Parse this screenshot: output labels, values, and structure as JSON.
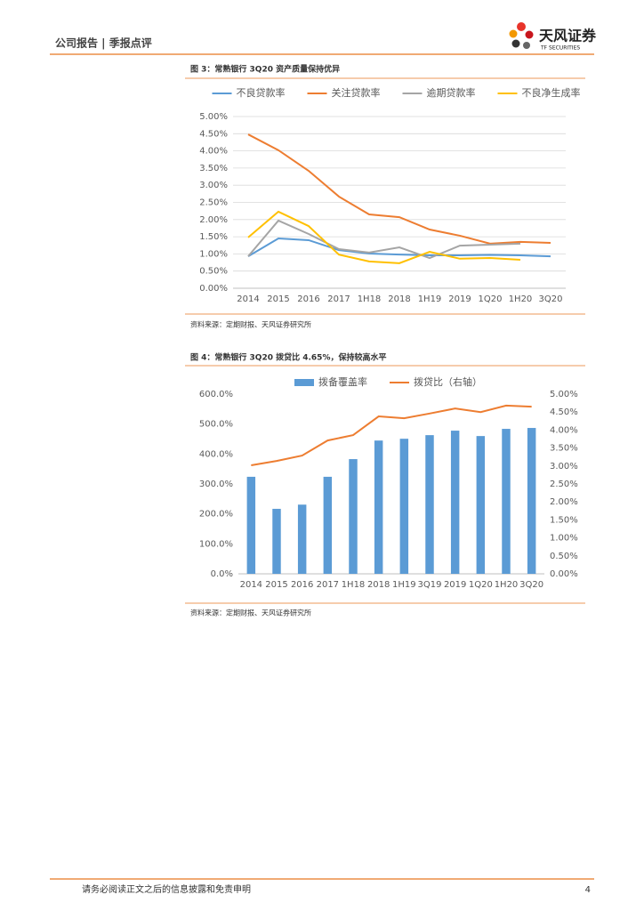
{
  "header": {
    "title": "公司报告 | 季报点评",
    "brand": "天风证券",
    "brand_en": "TF SECURITIES"
  },
  "figures": [
    {
      "caption": "图 3：常熟银行 3Q20 资产质量保持优异",
      "source": "资料来源：定期财报、天风证券研究所"
    },
    {
      "caption": "图 4：常熟银行 3Q20 拨贷比 4.65%，保持较高水平",
      "source": "资料来源：定期财报、天风证券研究所"
    }
  ],
  "chart_data": [
    {
      "type": "line",
      "categories": [
        "2014",
        "2015",
        "2016",
        "2017",
        "1H18",
        "2018",
        "1H19",
        "2019",
        "1Q20",
        "1H20",
        "3Q20"
      ],
      "ylim": [
        0,
        5
      ],
      "yticks": [
        {
          "value": 0,
          "label": "0.00%"
        },
        {
          "value": 0.5,
          "label": "0.50%"
        },
        {
          "value": 1,
          "label": "1.00%"
        },
        {
          "value": 1.5,
          "label": "1.50%"
        },
        {
          "value": 2,
          "label": "2.00%"
        },
        {
          "value": 2.5,
          "label": "2.50%"
        },
        {
          "value": 3,
          "label": "3.00%"
        },
        {
          "value": 3.5,
          "label": "3.50%"
        },
        {
          "value": 4,
          "label": "4.00%"
        },
        {
          "value": 4.5,
          "label": "4.50%"
        },
        {
          "value": 5,
          "label": "5.00%"
        }
      ],
      "grid": true,
      "series": [
        {
          "name": "不良贷款率",
          "color": "#5b9bd5",
          "values": [
            0.93,
            1.45,
            1.4,
            1.11,
            1.01,
            0.98,
            0.96,
            0.96,
            0.97,
            0.96,
            0.93
          ]
        },
        {
          "name": "关注贷款率",
          "color": "#ed7d31",
          "values": [
            4.48,
            4.02,
            3.42,
            2.67,
            2.15,
            2.07,
            1.71,
            1.53,
            1.3,
            1.35,
            1.32
          ]
        },
        {
          "name": "逾期贷款率",
          "color": "#a5a5a5",
          "values": [
            0.93,
            1.97,
            1.58,
            1.14,
            1.04,
            1.19,
            0.88,
            1.24,
            1.27,
            1.3,
            null
          ]
        },
        {
          "name": "不良净生成率",
          "color": "#ffc000",
          "values": [
            1.48,
            2.23,
            1.81,
            0.98,
            0.78,
            0.73,
            1.06,
            0.86,
            0.88,
            0.83,
            null
          ]
        }
      ]
    },
    {
      "type": "combo",
      "categories": [
        "2014",
        "2015",
        "2016",
        "2017",
        "1H18",
        "2018",
        "1H19",
        "3Q19",
        "2019",
        "1Q20",
        "1H20",
        "3Q20"
      ],
      "ylim": [
        0,
        600
      ],
      "yticks": [
        {
          "value": 0,
          "label": "0.0%"
        },
        {
          "value": 100,
          "label": "100.0%"
        },
        {
          "value": 200,
          "label": "200.0%"
        },
        {
          "value": 300,
          "label": "300.0%"
        },
        {
          "value": 400,
          "label": "400.0%"
        },
        {
          "value": 500,
          "label": "500.0%"
        },
        {
          "value": 600,
          "label": "600.0%"
        }
      ],
      "y2lim": [
        0,
        5
      ],
      "y2ticks": [
        {
          "value": 0,
          "label": "0.00%"
        },
        {
          "value": 0.5,
          "label": "0.50%"
        },
        {
          "value": 1,
          "label": "1.00%"
        },
        {
          "value": 1.5,
          "label": "1.50%"
        },
        {
          "value": 2,
          "label": "2.00%"
        },
        {
          "value": 2.5,
          "label": "2.50%"
        },
        {
          "value": 3,
          "label": "3.00%"
        },
        {
          "value": 3.5,
          "label": "3.50%"
        },
        {
          "value": 4,
          "label": "4.00%"
        },
        {
          "value": 4.5,
          "label": "4.50%"
        },
        {
          "value": 5,
          "label": "5.00%"
        }
      ],
      "grid": false,
      "series": [
        {
          "name": "拨备覆盖率",
          "type": "bar",
          "color": "#5b9bd5",
          "values": [
            324,
            217,
            231,
            324,
            383,
            445,
            451,
            463,
            478,
            460,
            484,
            487
          ]
        },
        {
          "name": "拨贷比（右轴）",
          "type": "line",
          "axis": "y2",
          "color": "#ed7d31",
          "values": [
            3.02,
            3.14,
            3.29,
            3.71,
            3.86,
            4.38,
            4.33,
            4.46,
            4.6,
            4.5,
            4.68,
            4.65
          ]
        }
      ]
    }
  ],
  "footer": {
    "disclaimer": "请务必阅读正文之后的信息披露和免责申明",
    "page": "4"
  }
}
